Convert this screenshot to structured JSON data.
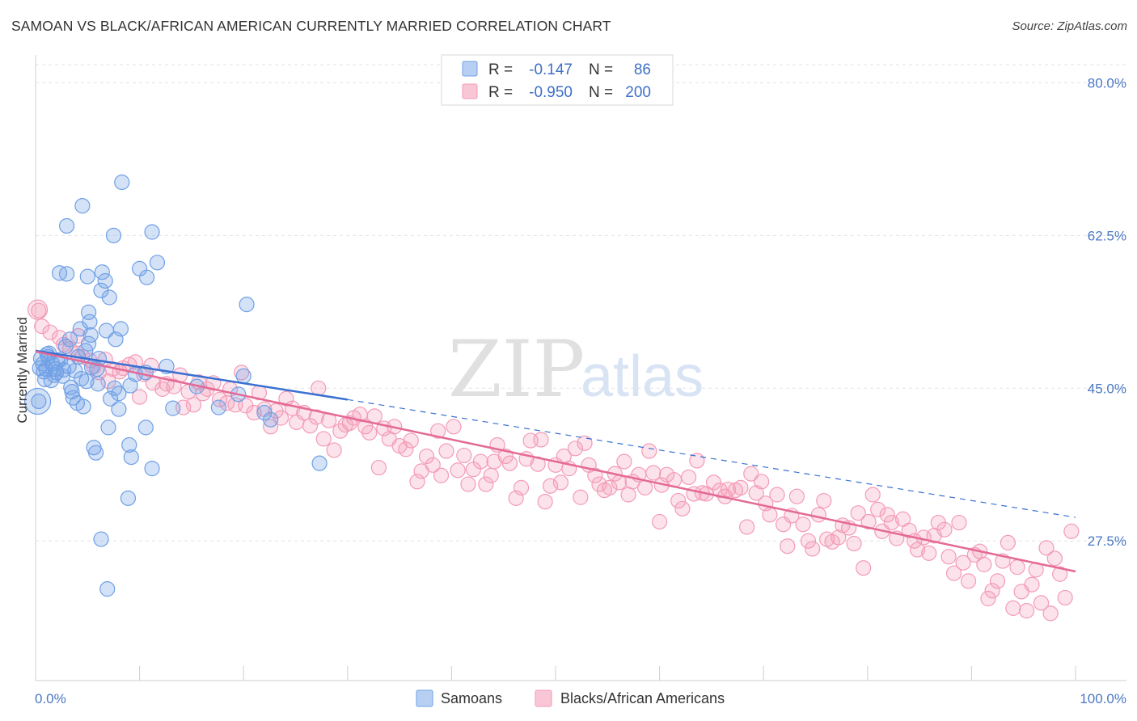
{
  "title": "SAMOAN VS BLACK/AFRICAN AMERICAN CURRENTLY MARRIED CORRELATION CHART",
  "source": "Source: ZipAtlas.com",
  "watermark": {
    "zip": "ZIP",
    "atlas": "atlas"
  },
  "colors": {
    "samoan": "#6fa0e6",
    "samoan_line": "#3a70d1",
    "black": "#f39bb7",
    "black_line": "#e46a96",
    "axis_text": "#4a77c5"
  },
  "stats": {
    "r_label": "R =",
    "n_label": "N =",
    "samoan": {
      "r": "-0.147",
      "n": "86"
    },
    "black": {
      "r": "-0.950",
      "n": "200"
    }
  },
  "legend": {
    "samoan": "Samoans",
    "black": "Blacks/African Americans"
  },
  "chart_data": {
    "type": "scatter",
    "title": "SAMOAN VS BLACK/AFRICAN AMERICAN CURRENTLY MARRIED CORRELATION CHART",
    "xlabel": "",
    "ylabel": "Currently Married",
    "xlim": [
      0,
      100
    ],
    "ylim": [
      11.5,
      83
    ],
    "x_tick_labels": [
      "0.0%",
      "100.0%"
    ],
    "y_ticks": [
      27.5,
      45.0,
      62.5,
      80.0
    ],
    "y_tick_labels": [
      "27.5%",
      "45.0%",
      "62.5%",
      "80.0%"
    ],
    "grid": "horizontal dashed",
    "legend_position": "bottom-center",
    "series": [
      {
        "name": "Samoans",
        "trend": {
          "x": [
            0,
            30
          ],
          "y": [
            49.3,
            43.7
          ],
          "dashed_to": [
            100,
            30.2
          ]
        },
        "points": [
          [
            0.5,
            48.4
          ],
          [
            0.4,
            47.3
          ],
          [
            0.8,
            46.9
          ],
          [
            0.3,
            43.5
          ],
          [
            1.2,
            48.6
          ],
          [
            1.6,
            47.8
          ],
          [
            1.9,
            47.2
          ],
          [
            2.4,
            48.3
          ],
          [
            1.8,
            46.5
          ],
          [
            2.7,
            47.1
          ],
          [
            2.9,
            49.8
          ],
          [
            3.2,
            47.5
          ],
          [
            2.6,
            46.4
          ],
          [
            3.5,
            44.6
          ],
          [
            3.6,
            43.9
          ],
          [
            4.0,
            43.3
          ],
          [
            4.6,
            42.9
          ],
          [
            4.3,
            51.8
          ],
          [
            3.3,
            50.6
          ],
          [
            4.1,
            48.6
          ],
          [
            4.8,
            49.3
          ],
          [
            5.4,
            47.4
          ],
          [
            4.9,
            45.8
          ],
          [
            5.1,
            50.1
          ],
          [
            5.3,
            51.1
          ],
          [
            6.1,
            48.4
          ],
          [
            7.2,
            43.8
          ],
          [
            2.3,
            58.2
          ],
          [
            3.0,
            58.1
          ],
          [
            3.0,
            63.6
          ],
          [
            4.5,
            65.9
          ],
          [
            5.0,
            57.8
          ],
          [
            5.1,
            53.7
          ],
          [
            5.2,
            52.6
          ],
          [
            6.3,
            56.2
          ],
          [
            6.4,
            58.3
          ],
          [
            6.7,
            57.3
          ],
          [
            7.1,
            55.4
          ],
          [
            6.8,
            51.6
          ],
          [
            7.7,
            50.6
          ],
          [
            8.2,
            51.8
          ],
          [
            9.6,
            46.6
          ],
          [
            9.1,
            45.3
          ],
          [
            10.0,
            58.7
          ],
          [
            10.6,
            46.8
          ],
          [
            10.7,
            57.7
          ],
          [
            7.5,
            62.5
          ],
          [
            8.3,
            68.6
          ],
          [
            11.2,
            62.9
          ],
          [
            11.7,
            59.4
          ],
          [
            8.0,
            44.4
          ],
          [
            8.0,
            42.6
          ],
          [
            9.0,
            38.5
          ],
          [
            9.2,
            37.1
          ],
          [
            7.0,
            40.5
          ],
          [
            5.6,
            38.2
          ],
          [
            5.8,
            37.6
          ],
          [
            10.6,
            40.5
          ],
          [
            11.2,
            35.8
          ],
          [
            8.9,
            32.4
          ],
          [
            6.3,
            27.7
          ],
          [
            6.9,
            22.0
          ],
          [
            12.6,
            47.5
          ],
          [
            13.2,
            42.7
          ],
          [
            15.5,
            45.2
          ],
          [
            17.6,
            42.8
          ],
          [
            19.5,
            44.3
          ],
          [
            20.0,
            46.4
          ],
          [
            20.3,
            54.6
          ],
          [
            22.0,
            42.2
          ],
          [
            22.6,
            41.4
          ],
          [
            27.3,
            36.4
          ],
          [
            1.0,
            47.2
          ],
          [
            1.5,
            45.9
          ],
          [
            2.1,
            48.1
          ],
          [
            1.3,
            49.0
          ],
          [
            0.9,
            46.0
          ],
          [
            3.8,
            47.0
          ],
          [
            4.4,
            46.1
          ],
          [
            5.9,
            47.2
          ],
          [
            6.0,
            45.5
          ],
          [
            7.6,
            45.0
          ],
          [
            3.4,
            45.1
          ],
          [
            2.0,
            46.8
          ],
          [
            1.1,
            48.9
          ],
          [
            0.7,
            47.8
          ]
        ]
      },
      {
        "name": "Blacks/African Americans",
        "trend": {
          "x": [
            0,
            100
          ],
          "y": [
            49.2,
            24.0
          ]
        },
        "points": [
          [
            0.3,
            53.9
          ],
          [
            0.6,
            52.1
          ],
          [
            1.4,
            51.4
          ],
          [
            2.3,
            50.8
          ],
          [
            2.7,
            50.0
          ],
          [
            3.3,
            49.5
          ],
          [
            4.0,
            49.0
          ],
          [
            4.1,
            51.0
          ],
          [
            4.5,
            48.6
          ],
          [
            5.2,
            48.2
          ],
          [
            5.6,
            47.5
          ],
          [
            6.1,
            46.8
          ],
          [
            6.7,
            48.3
          ],
          [
            7.0,
            45.8
          ],
          [
            7.4,
            47.2
          ],
          [
            8.1,
            46.9
          ],
          [
            8.4,
            47.3
          ],
          [
            9.0,
            47.7
          ],
          [
            9.6,
            48.0
          ],
          [
            10.0,
            44.0
          ],
          [
            10.4,
            46.6
          ],
          [
            11.1,
            47.6
          ],
          [
            11.3,
            45.6
          ],
          [
            12.2,
            44.9
          ],
          [
            12.6,
            45.5
          ],
          [
            13.3,
            45.2
          ],
          [
            13.9,
            46.5
          ],
          [
            14.2,
            42.8
          ],
          [
            14.7,
            44.6
          ],
          [
            15.2,
            43.1
          ],
          [
            15.7,
            45.7
          ],
          [
            16.1,
            44.4
          ],
          [
            16.5,
            44.9
          ],
          [
            17.1,
            45.6
          ],
          [
            17.7,
            43.7
          ],
          [
            18.4,
            43.3
          ],
          [
            18.7,
            44.9
          ],
          [
            19.2,
            43.1
          ],
          [
            19.8,
            46.8
          ],
          [
            20.2,
            43.0
          ],
          [
            21.0,
            42.2
          ],
          [
            21.5,
            44.5
          ],
          [
            22.0,
            42.6
          ],
          [
            22.6,
            40.6
          ],
          [
            23.1,
            42.4
          ],
          [
            23.6,
            41.6
          ],
          [
            24.1,
            43.8
          ],
          [
            24.7,
            42.7
          ],
          [
            25.1,
            41.1
          ],
          [
            25.8,
            42.2
          ],
          [
            26.4,
            40.7
          ],
          [
            27.0,
            41.7
          ],
          [
            27.2,
            45.0
          ],
          [
            27.7,
            39.2
          ],
          [
            28.2,
            41.3
          ],
          [
            28.7,
            37.9
          ],
          [
            29.3,
            40.1
          ],
          [
            29.8,
            40.8
          ],
          [
            30.2,
            41.0
          ],
          [
            30.6,
            41.6
          ],
          [
            31.2,
            42.0
          ],
          [
            31.7,
            40.6
          ],
          [
            32.1,
            39.9
          ],
          [
            32.6,
            41.8
          ],
          [
            33.0,
            35.9
          ],
          [
            33.5,
            40.4
          ],
          [
            34.0,
            39.2
          ],
          [
            34.5,
            40.6
          ],
          [
            35.0,
            38.4
          ],
          [
            35.6,
            38.0
          ],
          [
            36.1,
            39.0
          ],
          [
            36.7,
            34.3
          ],
          [
            37.1,
            35.5
          ],
          [
            37.6,
            37.2
          ],
          [
            38.2,
            36.2
          ],
          [
            38.7,
            40.1
          ],
          [
            39.0,
            35.0
          ],
          [
            39.5,
            37.8
          ],
          [
            40.2,
            40.6
          ],
          [
            40.6,
            35.6
          ],
          [
            41.2,
            37.3
          ],
          [
            41.6,
            34.0
          ],
          [
            42.1,
            35.7
          ],
          [
            42.8,
            36.6
          ],
          [
            43.3,
            34.0
          ],
          [
            43.8,
            35.0
          ],
          [
            44.1,
            36.6
          ],
          [
            44.4,
            38.5
          ],
          [
            45.2,
            37.2
          ],
          [
            45.6,
            36.4
          ],
          [
            46.2,
            32.4
          ],
          [
            46.7,
            33.6
          ],
          [
            47.2,
            36.9
          ],
          [
            47.6,
            39.0
          ],
          [
            48.3,
            36.3
          ],
          [
            48.6,
            39.1
          ],
          [
            49.0,
            32.0
          ],
          [
            49.5,
            33.8
          ],
          [
            50.0,
            36.2
          ],
          [
            50.5,
            34.2
          ],
          [
            50.8,
            37.2
          ],
          [
            51.3,
            35.8
          ],
          [
            51.9,
            38.1
          ],
          [
            52.4,
            32.5
          ],
          [
            52.8,
            38.7
          ],
          [
            53.2,
            36.2
          ],
          [
            53.8,
            35.0
          ],
          [
            54.2,
            34.0
          ],
          [
            54.7,
            33.3
          ],
          [
            55.2,
            33.6
          ],
          [
            55.7,
            35.2
          ],
          [
            56.1,
            34.2
          ],
          [
            56.6,
            36.6
          ],
          [
            57.0,
            32.8
          ],
          [
            57.4,
            34.3
          ],
          [
            58.0,
            35.1
          ],
          [
            58.6,
            33.6
          ],
          [
            59.0,
            37.8
          ],
          [
            59.4,
            35.3
          ],
          [
            60.0,
            29.7
          ],
          [
            60.2,
            33.9
          ],
          [
            60.7,
            35.1
          ],
          [
            61.4,
            34.5
          ],
          [
            61.8,
            32.1
          ],
          [
            62.2,
            31.2
          ],
          [
            62.8,
            34.8
          ],
          [
            63.3,
            32.9
          ],
          [
            63.6,
            36.7
          ],
          [
            64.1,
            33.0
          ],
          [
            64.5,
            32.9
          ],
          [
            65.2,
            34.2
          ],
          [
            65.8,
            33.3
          ],
          [
            66.3,
            32.6
          ],
          [
            66.6,
            33.4
          ],
          [
            67.3,
            33.3
          ],
          [
            67.8,
            33.6
          ],
          [
            68.4,
            29.1
          ],
          [
            68.8,
            35.2
          ],
          [
            69.3,
            33.0
          ],
          [
            69.8,
            34.3
          ],
          [
            70.2,
            31.8
          ],
          [
            70.6,
            30.5
          ],
          [
            71.3,
            32.8
          ],
          [
            71.9,
            29.4
          ],
          [
            72.3,
            26.9
          ],
          [
            72.7,
            30.4
          ],
          [
            73.2,
            32.6
          ],
          [
            73.8,
            29.4
          ],
          [
            74.3,
            27.5
          ],
          [
            74.7,
            26.6
          ],
          [
            75.3,
            30.5
          ],
          [
            75.8,
            32.1
          ],
          [
            76.1,
            27.7
          ],
          [
            76.6,
            27.4
          ],
          [
            77.2,
            27.9
          ],
          [
            77.6,
            29.3
          ],
          [
            78.2,
            29.0
          ],
          [
            78.7,
            27.2
          ],
          [
            79.1,
            30.7
          ],
          [
            79.6,
            24.4
          ],
          [
            80.1,
            29.7
          ],
          [
            80.5,
            32.8
          ],
          [
            81.0,
            31.1
          ],
          [
            81.4,
            28.6
          ],
          [
            81.9,
            30.5
          ],
          [
            82.3,
            29.6
          ],
          [
            82.8,
            27.8
          ],
          [
            83.4,
            30.0
          ],
          [
            84.0,
            28.7
          ],
          [
            84.5,
            27.5
          ],
          [
            84.8,
            26.5
          ],
          [
            85.4,
            27.9
          ],
          [
            85.9,
            26.1
          ],
          [
            86.4,
            28.1
          ],
          [
            86.8,
            29.6
          ],
          [
            87.4,
            28.8
          ],
          [
            87.8,
            25.7
          ],
          [
            88.3,
            23.8
          ],
          [
            88.8,
            29.6
          ],
          [
            89.2,
            25.0
          ],
          [
            89.7,
            22.9
          ],
          [
            90.3,
            25.9
          ],
          [
            90.8,
            26.3
          ],
          [
            91.2,
            24.8
          ],
          [
            91.6,
            20.9
          ],
          [
            92.0,
            21.8
          ],
          [
            92.5,
            22.9
          ],
          [
            93.0,
            25.2
          ],
          [
            93.5,
            27.3
          ],
          [
            94.0,
            19.8
          ],
          [
            94.4,
            24.5
          ],
          [
            94.8,
            21.7
          ],
          [
            95.3,
            19.5
          ],
          [
            95.8,
            22.5
          ],
          [
            96.2,
            24.2
          ],
          [
            96.7,
            20.4
          ],
          [
            97.2,
            26.7
          ],
          [
            97.6,
            19.2
          ],
          [
            98.0,
            25.5
          ],
          [
            98.5,
            23.7
          ],
          [
            99.0,
            21.0
          ],
          [
            99.6,
            28.6
          ]
        ]
      }
    ]
  }
}
